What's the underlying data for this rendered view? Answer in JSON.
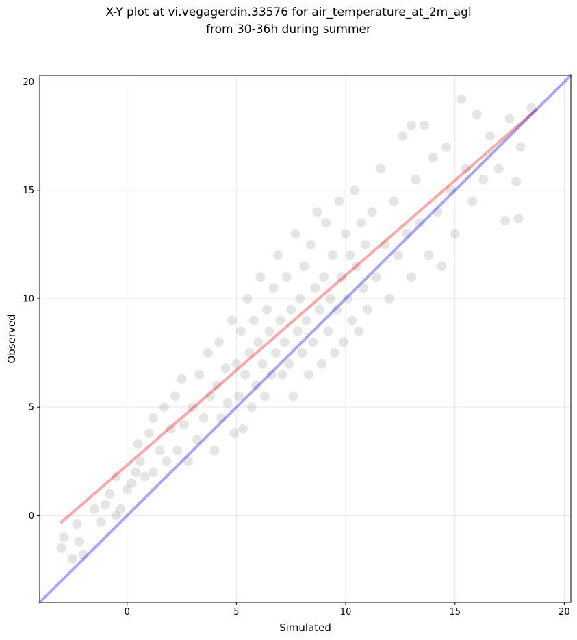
{
  "chart_data": {
    "type": "scatter",
    "title_line1": "X-Y plot at vi.vegagerdin.33576 for air_temperature_at_2m_agl",
    "title_line2": "from 30-36h during summer",
    "xlabel": "Simulated",
    "ylabel": "Observed",
    "xlim": [
      -4.0,
      20.3
    ],
    "ylim": [
      -4.0,
      20.3
    ],
    "xticks": [
      0,
      5,
      10,
      15,
      20
    ],
    "yticks": [
      0,
      5,
      10,
      15,
      20
    ],
    "grid": true,
    "point_color": "#000000",
    "point_opacity": 0.1,
    "series": [
      {
        "values": [
          [
            -3.0,
            -1.5
          ],
          [
            -2.9,
            -1.0
          ],
          [
            -2.5,
            -2.0
          ],
          [
            -2.2,
            -1.2
          ],
          [
            -2.0,
            -1.8
          ],
          [
            -2.3,
            -0.4
          ],
          [
            -1.5,
            0.3
          ],
          [
            -1.2,
            -0.3
          ],
          [
            -1.0,
            0.5
          ],
          [
            -0.8,
            1.0
          ],
          [
            -0.5,
            0.0
          ],
          [
            -0.3,
            0.3
          ],
          [
            -0.5,
            1.8
          ],
          [
            0.0,
            1.2
          ],
          [
            0.2,
            1.5
          ],
          [
            0.4,
            2.0
          ],
          [
            0.5,
            3.3
          ],
          [
            0.6,
            2.5
          ],
          [
            0.8,
            1.8
          ],
          [
            1.0,
            3.8
          ],
          [
            1.2,
            2.0
          ],
          [
            1.2,
            4.5
          ],
          [
            1.5,
            3.0
          ],
          [
            1.7,
            5.0
          ],
          [
            1.8,
            2.5
          ],
          [
            2.0,
            4.0
          ],
          [
            2.2,
            5.5
          ],
          [
            2.3,
            3.0
          ],
          [
            2.5,
            6.3
          ],
          [
            2.6,
            4.2
          ],
          [
            2.8,
            2.5
          ],
          [
            3.0,
            5.0
          ],
          [
            3.2,
            3.5
          ],
          [
            3.3,
            6.5
          ],
          [
            3.5,
            4.5
          ],
          [
            3.7,
            7.5
          ],
          [
            3.8,
            5.5
          ],
          [
            4.0,
            3.0
          ],
          [
            4.1,
            6.0
          ],
          [
            4.2,
            8.0
          ],
          [
            4.3,
            4.5
          ],
          [
            4.5,
            6.8
          ],
          [
            4.6,
            5.2
          ],
          [
            4.8,
            9.0
          ],
          [
            4.9,
            3.8
          ],
          [
            5.0,
            7.0
          ],
          [
            5.1,
            5.5
          ],
          [
            5.2,
            8.5
          ],
          [
            5.3,
            4.0
          ],
          [
            5.4,
            6.5
          ],
          [
            5.5,
            10.0
          ],
          [
            5.6,
            7.5
          ],
          [
            5.7,
            5.0
          ],
          [
            5.8,
            9.0
          ],
          [
            5.9,
            6.0
          ],
          [
            6.0,
            8.0
          ],
          [
            6.1,
            11.0
          ],
          [
            6.2,
            7.0
          ],
          [
            6.3,
            5.5
          ],
          [
            6.4,
            9.5
          ],
          [
            6.5,
            8.5
          ],
          [
            6.6,
            6.5
          ],
          [
            6.7,
            10.5
          ],
          [
            6.8,
            7.5
          ],
          [
            6.9,
            12.0
          ],
          [
            7.0,
            9.0
          ],
          [
            7.1,
            6.5
          ],
          [
            7.2,
            8.0
          ],
          [
            7.3,
            11.0
          ],
          [
            7.4,
            7.0
          ],
          [
            7.5,
            9.5
          ],
          [
            7.6,
            5.5
          ],
          [
            7.7,
            13.0
          ],
          [
            7.8,
            8.5
          ],
          [
            7.9,
            10.0
          ],
          [
            8.0,
            7.5
          ],
          [
            8.1,
            11.5
          ],
          [
            8.2,
            9.0
          ],
          [
            8.3,
            6.5
          ],
          [
            8.4,
            12.5
          ],
          [
            8.5,
            8.0
          ],
          [
            8.6,
            10.5
          ],
          [
            8.7,
            14.0
          ],
          [
            8.8,
            9.5
          ],
          [
            8.9,
            7.0
          ],
          [
            9.0,
            11.0
          ],
          [
            9.1,
            13.5
          ],
          [
            9.2,
            8.5
          ],
          [
            9.3,
            10.0
          ],
          [
            9.4,
            12.0
          ],
          [
            9.5,
            7.5
          ],
          [
            9.6,
            9.5
          ],
          [
            9.7,
            14.5
          ],
          [
            9.8,
            11.0
          ],
          [
            9.9,
            8.0
          ],
          [
            10.0,
            13.0
          ],
          [
            10.1,
            10.0
          ],
          [
            10.2,
            12.0
          ],
          [
            10.3,
            9.0
          ],
          [
            10.4,
            15.0
          ],
          [
            10.5,
            11.5
          ],
          [
            10.6,
            8.5
          ],
          [
            10.7,
            13.5
          ],
          [
            10.8,
            10.5
          ],
          [
            10.9,
            12.5
          ],
          [
            11.0,
            9.5
          ],
          [
            11.2,
            14.0
          ],
          [
            11.4,
            11.0
          ],
          [
            11.6,
            16.0
          ],
          [
            11.8,
            12.5
          ],
          [
            12.0,
            10.0
          ],
          [
            12.2,
            14.5
          ],
          [
            12.4,
            12.0
          ],
          [
            12.6,
            17.5
          ],
          [
            12.8,
            13.0
          ],
          [
            13.0,
            11.0
          ],
          [
            13.2,
            15.5
          ],
          [
            13.4,
            13.5
          ],
          [
            13.6,
            18.0
          ],
          [
            13.8,
            12.0
          ],
          [
            14.0,
            16.5
          ],
          [
            14.2,
            14.0
          ],
          [
            14.4,
            11.5
          ],
          [
            14.6,
            17.0
          ],
          [
            14.8,
            15.0
          ],
          [
            15.0,
            13.0
          ],
          [
            15.3,
            19.2
          ],
          [
            15.5,
            16.0
          ],
          [
            15.8,
            14.5
          ],
          [
            16.0,
            18.5
          ],
          [
            16.3,
            15.5
          ],
          [
            16.6,
            17.5
          ],
          [
            17.0,
            16.0
          ],
          [
            17.3,
            13.6
          ],
          [
            17.5,
            18.3
          ],
          [
            17.8,
            15.4
          ],
          [
            17.9,
            13.7
          ],
          [
            18.0,
            17.0
          ],
          [
            18.5,
            18.8
          ],
          [
            13.0,
            18.0
          ]
        ]
      }
    ],
    "fit_line": {
      "color": "#ff0000",
      "opacity": 0.35,
      "x": [
        -3.0,
        18.7
      ],
      "y": [
        -0.3,
        18.7
      ]
    },
    "identity_line": {
      "color": "#0000ff",
      "opacity": 0.35,
      "x": [
        -4.0,
        20.3
      ],
      "y": [
        -4.0,
        20.3
      ]
    }
  }
}
